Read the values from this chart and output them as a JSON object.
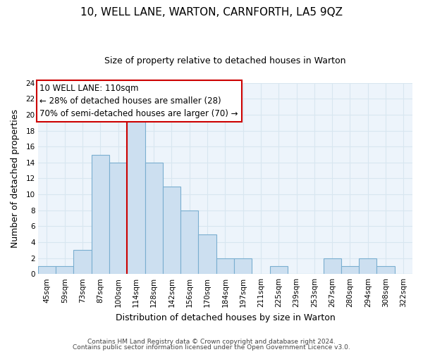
{
  "title": "10, WELL LANE, WARTON, CARNFORTH, LA5 9QZ",
  "subtitle": "Size of property relative to detached houses in Warton",
  "xlabel": "Distribution of detached houses by size in Warton",
  "ylabel": "Number of detached properties",
  "bin_labels": [
    "45sqm",
    "59sqm",
    "73sqm",
    "87sqm",
    "100sqm",
    "114sqm",
    "128sqm",
    "142sqm",
    "156sqm",
    "170sqm",
    "184sqm",
    "197sqm",
    "211sqm",
    "225sqm",
    "239sqm",
    "253sqm",
    "267sqm",
    "280sqm",
    "294sqm",
    "308sqm",
    "322sqm"
  ],
  "bar_heights": [
    1,
    1,
    3,
    15,
    14,
    20,
    14,
    11,
    8,
    5,
    2,
    2,
    0,
    1,
    0,
    0,
    2,
    1,
    2,
    1,
    0
  ],
  "bar_color": "#ccdff0",
  "bar_edge_color": "#7aaed0",
  "grid_color": "#d8e6f0",
  "vline_x_index": 4.5,
  "vline_color": "#cc0000",
  "ylim": [
    0,
    24
  ],
  "yticks": [
    0,
    2,
    4,
    6,
    8,
    10,
    12,
    14,
    16,
    18,
    20,
    22,
    24
  ],
  "annotation_text_line1": "10 WELL LANE: 110sqm",
  "annotation_text_line2": "← 28% of detached houses are smaller (28)",
  "annotation_text_line3": "70% of semi-detached houses are larger (70) →",
  "annotation_box_color": "#ffffff",
  "annotation_box_edge": "#cc0000",
  "footer_line1": "Contains HM Land Registry data © Crown copyright and database right 2024.",
  "footer_line2": "Contains public sector information licensed under the Open Government Licence v3.0.",
  "title_fontsize": 11,
  "subtitle_fontsize": 9,
  "axis_label_fontsize": 9,
  "tick_fontsize": 7.5,
  "annotation_fontsize": 8.5,
  "footer_fontsize": 6.5,
  "bg_color": "#edf4fb"
}
